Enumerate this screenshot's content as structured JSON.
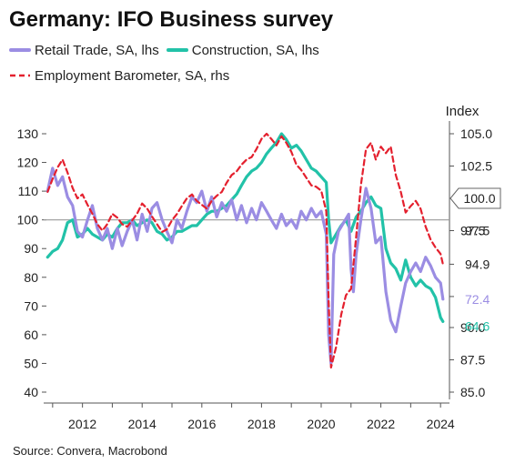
{
  "title": "Germany: IFO Business survey",
  "source": "Source: Convera, Macrobond",
  "chart_data": {
    "type": "line",
    "title": "Germany: IFO Business survey",
    "xlabel": "",
    "ylabel_left": "",
    "ylabel_right": "Index",
    "x_ticks": [
      "2012",
      "2014",
      "2016",
      "2018",
      "2020",
      "2022",
      "2024"
    ],
    "y_left_ticks": [
      "130",
      "120",
      "110",
      "100",
      "90",
      "80",
      "70",
      "60",
      "50",
      "40"
    ],
    "y_right_ticks": [
      "105.0",
      "102.5",
      "100.0",
      "97.5",
      "94.9",
      "92.4",
      "90.0",
      "87.5",
      "85.0"
    ],
    "ylim_left": [
      40,
      130
    ],
    "ylim_right": [
      85,
      105
    ],
    "xlim": [
      2010.7,
      2024.3
    ],
    "reference_line_left": 100,
    "grid": false,
    "legend_position": "top-left",
    "colors": {
      "retail": "#9b8de3",
      "construction": "#22c2a8",
      "employment": "#e4202e",
      "reference": "#999999",
      "axis": "#555555"
    },
    "series": [
      {
        "name": "Retail Trade, SA, lhs",
        "axis": "left",
        "style": "solid",
        "color": "#9b8de3",
        "end_label": "72.4",
        "points": [
          [
            2010.83,
            110
          ],
          [
            2011.0,
            118
          ],
          [
            2011.17,
            112
          ],
          [
            2011.33,
            115
          ],
          [
            2011.5,
            108
          ],
          [
            2011.67,
            105
          ],
          [
            2011.83,
            96
          ],
          [
            2012.0,
            94
          ],
          [
            2012.17,
            100
          ],
          [
            2012.33,
            105
          ],
          [
            2012.5,
            97
          ],
          [
            2012.67,
            93
          ],
          [
            2012.83,
            97
          ],
          [
            2013.0,
            90
          ],
          [
            2013.17,
            97
          ],
          [
            2013.33,
            91
          ],
          [
            2013.5,
            96
          ],
          [
            2013.67,
            100
          ],
          [
            2013.83,
            93
          ],
          [
            2014.0,
            102
          ],
          [
            2014.17,
            96
          ],
          [
            2014.33,
            104
          ],
          [
            2014.5,
            106
          ],
          [
            2014.67,
            100
          ],
          [
            2014.83,
            96
          ],
          [
            2015.0,
            92
          ],
          [
            2015.17,
            100
          ],
          [
            2015.33,
            97
          ],
          [
            2015.5,
            103
          ],
          [
            2015.67,
            108
          ],
          [
            2015.83,
            106
          ],
          [
            2016.0,
            110
          ],
          [
            2016.17,
            103
          ],
          [
            2016.33,
            108
          ],
          [
            2016.5,
            101
          ],
          [
            2016.67,
            106
          ],
          [
            2016.83,
            103
          ],
          [
            2017.0,
            107
          ],
          [
            2017.17,
            100
          ],
          [
            2017.33,
            105
          ],
          [
            2017.5,
            99
          ],
          [
            2017.67,
            104
          ],
          [
            2017.83,
            100
          ],
          [
            2018.0,
            106
          ],
          [
            2018.17,
            103
          ],
          [
            2018.33,
            100
          ],
          [
            2018.5,
            97
          ],
          [
            2018.67,
            102
          ],
          [
            2018.83,
            98
          ],
          [
            2019.0,
            100
          ],
          [
            2019.17,
            97
          ],
          [
            2019.33,
            103
          ],
          [
            2019.5,
            100
          ],
          [
            2019.67,
            104
          ],
          [
            2019.83,
            101
          ],
          [
            2020.0,
            103
          ],
          [
            2020.17,
            95
          ],
          [
            2020.25,
            60
          ],
          [
            2020.33,
            50
          ],
          [
            2020.42,
            88
          ],
          [
            2020.58,
            96
          ],
          [
            2020.75,
            99
          ],
          [
            2020.92,
            102
          ],
          [
            2021.0,
            83
          ],
          [
            2021.08,
            75
          ],
          [
            2021.17,
            88
          ],
          [
            2021.33,
            100
          ],
          [
            2021.5,
            111
          ],
          [
            2021.67,
            104
          ],
          [
            2021.83,
            92
          ],
          [
            2022.0,
            94
          ],
          [
            2022.17,
            75
          ],
          [
            2022.33,
            65
          ],
          [
            2022.5,
            61
          ],
          [
            2022.67,
            70
          ],
          [
            2022.83,
            78
          ],
          [
            2023.0,
            82
          ],
          [
            2023.17,
            85
          ],
          [
            2023.33,
            82
          ],
          [
            2023.5,
            87
          ],
          [
            2023.67,
            84
          ],
          [
            2023.83,
            80
          ],
          [
            2024.0,
            78
          ],
          [
            2024.08,
            72.4
          ]
        ]
      },
      {
        "name": "Construction, SA, lhs",
        "axis": "left",
        "style": "solid",
        "color": "#22c2a8",
        "end_label": "64.6",
        "points": [
          [
            2010.83,
            87
          ],
          [
            2011.0,
            89
          ],
          [
            2011.17,
            90
          ],
          [
            2011.33,
            93
          ],
          [
            2011.5,
            99
          ],
          [
            2011.67,
            100
          ],
          [
            2011.83,
            94
          ],
          [
            2012.0,
            95
          ],
          [
            2012.17,
            97
          ],
          [
            2012.33,
            95
          ],
          [
            2012.5,
            94
          ],
          [
            2012.67,
            93
          ],
          [
            2012.83,
            95
          ],
          [
            2013.0,
            94
          ],
          [
            2013.17,
            97
          ],
          [
            2013.33,
            99
          ],
          [
            2013.5,
            99
          ],
          [
            2013.67,
            100
          ],
          [
            2013.83,
            98
          ],
          [
            2014.0,
            99
          ],
          [
            2014.17,
            100
          ],
          [
            2014.33,
            99
          ],
          [
            2014.5,
            96
          ],
          [
            2014.67,
            95
          ],
          [
            2014.83,
            93
          ],
          [
            2015.0,
            94
          ],
          [
            2015.17,
            96
          ],
          [
            2015.33,
            96
          ],
          [
            2015.5,
            97
          ],
          [
            2015.67,
            98
          ],
          [
            2015.83,
            98
          ],
          [
            2016.0,
            100
          ],
          [
            2016.17,
            102
          ],
          [
            2016.33,
            103
          ],
          [
            2016.5,
            103
          ],
          [
            2016.67,
            104
          ],
          [
            2016.83,
            105
          ],
          [
            2017.0,
            107
          ],
          [
            2017.17,
            109
          ],
          [
            2017.33,
            112
          ],
          [
            2017.5,
            115
          ],
          [
            2017.67,
            117
          ],
          [
            2017.83,
            118
          ],
          [
            2018.0,
            120
          ],
          [
            2018.17,
            123
          ],
          [
            2018.33,
            125
          ],
          [
            2018.5,
            127
          ],
          [
            2018.67,
            130
          ],
          [
            2018.83,
            128
          ],
          [
            2019.0,
            125
          ],
          [
            2019.17,
            126
          ],
          [
            2019.33,
            124
          ],
          [
            2019.5,
            121
          ],
          [
            2019.67,
            118
          ],
          [
            2019.83,
            117
          ],
          [
            2020.0,
            115
          ],
          [
            2020.17,
            113
          ],
          [
            2020.25,
            100
          ],
          [
            2020.33,
            92
          ],
          [
            2020.5,
            95
          ],
          [
            2020.67,
            98
          ],
          [
            2020.83,
            100
          ],
          [
            2021.0,
            96
          ],
          [
            2021.17,
            101
          ],
          [
            2021.33,
            103
          ],
          [
            2021.5,
            106
          ],
          [
            2021.67,
            108
          ],
          [
            2021.83,
            105
          ],
          [
            2022.0,
            104
          ],
          [
            2022.17,
            90
          ],
          [
            2022.33,
            85
          ],
          [
            2022.5,
            83
          ],
          [
            2022.67,
            79
          ],
          [
            2022.83,
            86
          ],
          [
            2023.0,
            80
          ],
          [
            2023.17,
            77
          ],
          [
            2023.33,
            79
          ],
          [
            2023.5,
            77
          ],
          [
            2023.67,
            76
          ],
          [
            2023.83,
            73
          ],
          [
            2024.0,
            66
          ],
          [
            2024.08,
            64.6
          ]
        ]
      },
      {
        "name": "Employment Barometer, SA, rhs",
        "axis": "right",
        "style": "dashed",
        "color": "#e4202e",
        "end_label": "",
        "points": [
          [
            2010.83,
            100.5
          ],
          [
            2011.0,
            101.5
          ],
          [
            2011.17,
            102.4
          ],
          [
            2011.33,
            103.0
          ],
          [
            2011.5,
            102.0
          ],
          [
            2011.67,
            100.8
          ],
          [
            2011.83,
            100.0
          ],
          [
            2012.0,
            100.3
          ],
          [
            2012.17,
            99.5
          ],
          [
            2012.33,
            98.8
          ],
          [
            2012.5,
            98.0
          ],
          [
            2012.67,
            97.5
          ],
          [
            2012.83,
            98.0
          ],
          [
            2013.0,
            98.8
          ],
          [
            2013.17,
            98.5
          ],
          [
            2013.33,
            98.0
          ],
          [
            2013.5,
            97.8
          ],
          [
            2013.67,
            98.3
          ],
          [
            2013.83,
            98.8
          ],
          [
            2014.0,
            99.6
          ],
          [
            2014.17,
            99.2
          ],
          [
            2014.33,
            98.6
          ],
          [
            2014.5,
            98.0
          ],
          [
            2014.67,
            97.4
          ],
          [
            2014.83,
            97.6
          ],
          [
            2015.0,
            98.3
          ],
          [
            2015.17,
            98.8
          ],
          [
            2015.33,
            99.4
          ],
          [
            2015.5,
            100.0
          ],
          [
            2015.67,
            100.3
          ],
          [
            2015.83,
            99.8
          ],
          [
            2016.0,
            99.5
          ],
          [
            2016.17,
            99.2
          ],
          [
            2016.33,
            99.8
          ],
          [
            2016.5,
            100.2
          ],
          [
            2016.67,
            100.5
          ],
          [
            2016.83,
            101.2
          ],
          [
            2017.0,
            101.8
          ],
          [
            2017.17,
            102.1
          ],
          [
            2017.33,
            102.6
          ],
          [
            2017.5,
            103.0
          ],
          [
            2017.67,
            103.2
          ],
          [
            2017.83,
            103.8
          ],
          [
            2018.0,
            104.6
          ],
          [
            2018.17,
            105.0
          ],
          [
            2018.33,
            104.6
          ],
          [
            2018.5,
            104.1
          ],
          [
            2018.67,
            104.8
          ],
          [
            2018.83,
            104.3
          ],
          [
            2019.0,
            103.6
          ],
          [
            2019.17,
            102.6
          ],
          [
            2019.33,
            102.2
          ],
          [
            2019.5,
            101.6
          ],
          [
            2019.67,
            101.0
          ],
          [
            2019.83,
            100.9
          ],
          [
            2020.0,
            100.6
          ],
          [
            2020.17,
            99.0
          ],
          [
            2020.25,
            92.0
          ],
          [
            2020.33,
            86.9
          ],
          [
            2020.5,
            88.5
          ],
          [
            2020.67,
            91.0
          ],
          [
            2020.83,
            92.5
          ],
          [
            2021.0,
            93.0
          ],
          [
            2021.17,
            97.0
          ],
          [
            2021.33,
            101.0
          ],
          [
            2021.5,
            103.8
          ],
          [
            2021.67,
            104.3
          ],
          [
            2021.83,
            103.0
          ],
          [
            2022.0,
            104.0
          ],
          [
            2022.17,
            103.5
          ],
          [
            2022.33,
            104.0
          ],
          [
            2022.5,
            101.8
          ],
          [
            2022.67,
            100.5
          ],
          [
            2022.83,
            98.9
          ],
          [
            2023.0,
            99.4
          ],
          [
            2023.17,
            99.8
          ],
          [
            2023.33,
            99.2
          ],
          [
            2023.5,
            97.8
          ],
          [
            2023.67,
            96.8
          ],
          [
            2023.83,
            96.2
          ],
          [
            2024.0,
            95.7
          ],
          [
            2024.08,
            94.9
          ]
        ]
      }
    ],
    "callout": {
      "value": "100.0",
      "axis": "right",
      "y": 100
    }
  }
}
